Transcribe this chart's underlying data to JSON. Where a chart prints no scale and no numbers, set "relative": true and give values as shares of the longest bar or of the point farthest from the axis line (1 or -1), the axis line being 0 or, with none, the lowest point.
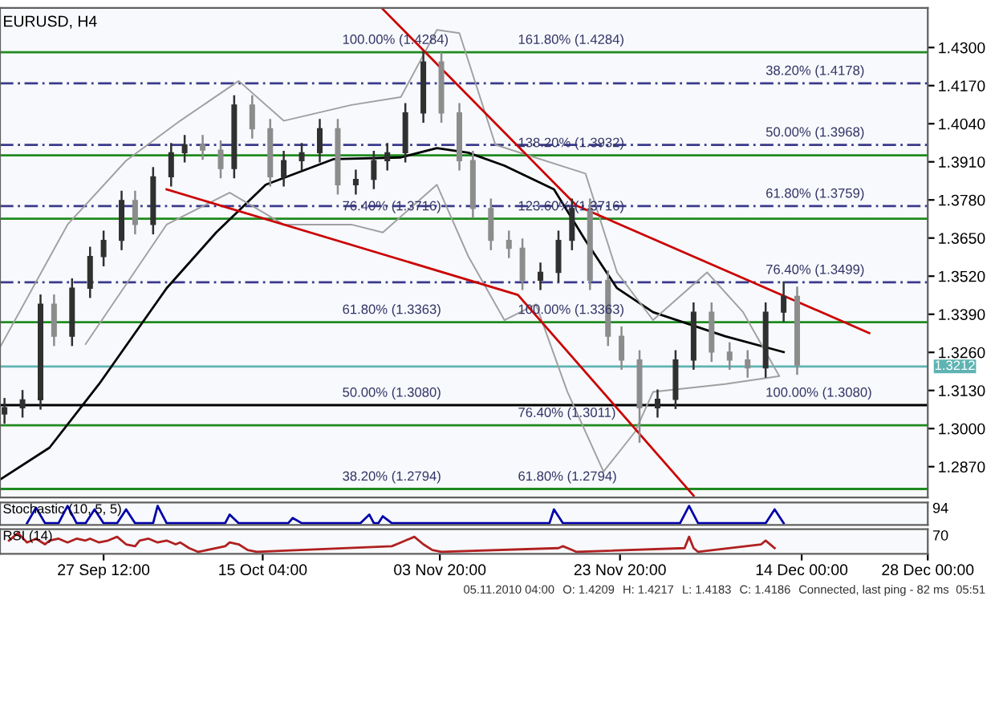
{
  "chart_data": [
    {
      "type": "candlestick",
      "title": "EURUSD, H4",
      "colors": [
        "#303030",
        "#303030",
        "#303030",
        "#8c8c8c",
        "#303030",
        "#303030",
        "#303030",
        "#303030",
        "#8c8c8c",
        "#303030",
        "#303030",
        "#303030",
        "#8c8c8c",
        "#8c8c8c",
        "#303030",
        "#8c8c8c",
        "#8c8c8c",
        "#303030",
        "#303030",
        "#303030",
        "#8c8c8c",
        "#303030",
        "#303030",
        "#303030",
        "#303030",
        "#303030",
        "#8c8c8c",
        "#8c8c8c",
        "#8c8c8c",
        "#8c8c8c",
        "#8c8c8c",
        "#8c8c8c",
        "#303030",
        "#303030",
        "#303030",
        "#8c8c8c",
        "#8c8c8c",
        "#8c8c8c",
        "#8c8c8c",
        "#303030",
        "#303030",
        "#303030",
        "#8c8c8c",
        "#8c8c8c",
        "#8c8c8c",
        "#303030",
        "#303030",
        "#8c8c8c"
      ],
      "x": [
        "2010-09-16T12:00",
        "2010-09-18T12:00",
        "2010-09-20T12:00",
        "2010-09-22T00:00",
        "2010-09-24T00:00",
        "2010-09-26T00:00",
        "2010-09-27T12:00",
        "2010-09-29T12:00",
        "2010-10-01T00:00",
        "2010-10-03T00:00",
        "2010-10-05T00:00",
        "2010-10-06T12:00",
        "2010-10-08T12:00",
        "2010-10-10T12:00",
        "2010-10-12T00:00",
        "2010-10-14T00:00",
        "2010-10-16T00:00",
        "2010-10-17T12:00",
        "2010-10-19T12:00",
        "2010-10-21T12:00",
        "2010-10-23T12:00",
        "2010-10-25T12:00",
        "2010-10-27T12:00",
        "2010-10-29T00:00",
        "2010-10-31T00:00",
        "2010-11-02T00:00",
        "2010-11-04T00:00",
        "2010-11-06T00:00",
        "2010-11-07T12:00",
        "2010-11-09T12:00",
        "2010-11-11T12:00",
        "2010-11-13T00:00",
        "2010-11-15T00:00",
        "2010-11-17T00:00",
        "2010-11-18T12:00",
        "2010-11-20T12:00",
        "2010-11-22T12:00",
        "2010-11-24T00:00",
        "2010-11-26T00:00",
        "2010-11-28T00:00",
        "2010-11-30T00:00",
        "2010-12-02T00:00",
        "2010-12-04T00:00",
        "2010-12-06T00:00",
        "2010-12-08T00:00",
        "2010-12-10T00:00",
        "2010-12-12T00:00",
        "2010-12-13T12:00"
      ],
      "ohlc": [
        [
          1.305,
          1.3101,
          1.302,
          1.3071
        ],
        [
          1.3071,
          1.3128,
          1.3041,
          1.3098
        ],
        [
          1.3098,
          1.3454,
          1.3068,
          1.3424
        ],
        [
          1.3424,
          1.3454,
          1.3285,
          1.3315
        ],
        [
          1.3315,
          1.3509,
          1.3285,
          1.3479
        ],
        [
          1.3479,
          1.3617,
          1.3449,
          1.3587
        ],
        [
          1.3587,
          1.3672,
          1.3557,
          1.3642
        ],
        [
          1.3642,
          1.3808,
          1.3612,
          1.3778
        ],
        [
          1.3778,
          1.3808,
          1.3666,
          1.3696
        ],
        [
          1.3696,
          1.3889,
          1.3666,
          1.3859
        ],
        [
          1.3859,
          1.3971,
          1.3829,
          1.3941
        ],
        [
          1.3941,
          1.3998,
          1.3911,
          1.3968
        ],
        [
          1.3968,
          1.3998,
          1.392,
          1.395
        ],
        [
          1.395,
          1.398,
          1.3857,
          1.3887
        ],
        [
          1.3887,
          1.4134,
          1.3857,
          1.4104
        ],
        [
          1.4104,
          1.4134,
          1.3993,
          1.4023
        ],
        [
          1.4023,
          1.4053,
          1.3829,
          1.3859
        ],
        [
          1.3859,
          1.3944,
          1.3829,
          1.3914
        ],
        [
          1.3914,
          1.3971,
          1.3884,
          1.3941
        ],
        [
          1.3941,
          1.4053,
          1.3911,
          1.4023
        ],
        [
          1.4023,
          1.4053,
          1.3802,
          1.3832
        ],
        [
          1.3832,
          1.388,
          1.3802,
          1.385
        ],
        [
          1.385,
          1.3944,
          1.382,
          1.3914
        ],
        [
          1.3914,
          1.3971,
          1.3884,
          1.3941
        ],
        [
          1.3941,
          1.4107,
          1.3911,
          1.4077
        ],
        [
          1.4077,
          1.4284,
          1.4047,
          1.4251
        ],
        [
          1.4251,
          1.4281,
          1.4047,
          1.4077
        ],
        [
          1.4077,
          1.4107,
          1.3884,
          1.3914
        ],
        [
          1.3914,
          1.3944,
          1.3721,
          1.3751
        ],
        [
          1.3751,
          1.3781,
          1.3612,
          1.3642
        ],
        [
          1.3642,
          1.3672,
          1.3585,
          1.3615
        ],
        [
          1.3615,
          1.3645,
          1.3476,
          1.3506
        ],
        [
          1.3506,
          1.3563,
          1.3476,
          1.3533
        ],
        [
          1.3533,
          1.3672,
          1.3503,
          1.3642
        ],
        [
          1.3642,
          1.3781,
          1.3612,
          1.3751
        ],
        [
          1.3751,
          1.3781,
          1.3476,
          1.3506
        ],
        [
          1.3506,
          1.3536,
          1.3285,
          1.3315
        ],
        [
          1.3315,
          1.3345,
          1.3204,
          1.3234
        ],
        [
          1.3234,
          1.3264,
          1.2955,
          1.3071
        ],
        [
          1.3071,
          1.313,
          1.3041,
          1.31
        ],
        [
          1.31,
          1.3264,
          1.307,
          1.3234
        ],
        [
          1.3234,
          1.3427,
          1.3204,
          1.3397
        ],
        [
          1.3397,
          1.3427,
          1.3231,
          1.3261
        ],
        [
          1.3261,
          1.3291,
          1.3204,
          1.3234
        ],
        [
          1.3234,
          1.3264,
          1.3177,
          1.3207
        ],
        [
          1.3207,
          1.3427,
          1.3177,
          1.3397
        ],
        [
          1.3397,
          1.3499,
          1.3367,
          1.3451
        ],
        [
          1.3451,
          1.3481,
          1.3187,
          1.3217
        ]
      ],
      "series": [
        {
          "type": "line",
          "color": "#000000",
          "x": [
            "2010-09-16T00:00",
            "2010-09-21T12:00",
            "2010-09-27T00:00",
            "2010-10-04T12:00",
            "2010-10-10T00:00",
            "2010-10-15T12:00",
            "2010-10-23T00:00",
            "2010-10-30T12:00",
            "2010-11-03T12:00",
            "2010-11-07T00:00",
            "2010-11-11T00:00",
            "2010-11-16T12:00",
            "2010-11-20T00:00",
            "2010-11-23T12:00",
            "2010-11-27T12:00",
            "2010-12-05T12:00",
            "2010-12-12T00:00"
          ],
          "values": [
            1.2826,
            1.2935,
            1.3152,
            1.3479,
            1.3669,
            1.3832,
            1.3919,
            1.3925,
            1.3957,
            1.3941,
            1.3897,
            1.3816,
            1.3642,
            1.3479,
            1.3397,
            1.3315,
            1.3261
          ]
        },
        {
          "type": "line",
          "color": "#a0a0a0",
          "x": [
            "2010-09-16T00:00",
            "2010-09-23T12:00",
            "2010-09-30T00:00",
            "2010-10-06T00:00",
            "2010-10-12T12:00",
            "2010-10-17T12:00",
            "2010-10-25T00:00",
            "2010-10-30T12:00",
            "2010-11-03T12:00",
            "2010-11-06T00:00",
            "2010-11-10T00:00",
            "2010-11-20T00:00",
            "2010-11-23T12:00",
            "2010-11-27T12:00",
            "2010-12-03T12:00",
            "2010-12-07T12:00",
            "2010-12-11T12:00"
          ],
          "values": [
            1.3277,
            1.3696,
            1.3914,
            1.405,
            1.4186,
            1.405,
            1.4104,
            1.4131,
            1.436,
            1.4349,
            1.3968,
            1.387,
            1.3533,
            1.337,
            1.3533,
            1.3397,
            1.318
          ]
        },
        {
          "type": "line",
          "color": "#a0a0a0",
          "x": [
            "2010-09-25T12:00",
            "2010-10-04T12:00",
            "2010-10-11T12:00",
            "2010-10-17T12:00",
            "2010-10-25T00:00",
            "2010-10-28T12:00",
            "2010-11-03T12:00",
            "2010-11-07T00:00",
            "2010-11-11T00:00",
            "2010-11-14T12:00",
            "2010-11-18T00:00",
            "2010-11-22T00:00",
            "2010-11-25T12:00",
            "2010-11-27T12:00",
            "2010-12-05T12:00",
            "2010-12-11T12:00"
          ],
          "values": [
            1.3288,
            1.3696,
            1.3805,
            1.3696,
            1.3696,
            1.3669,
            1.3832,
            1.3587,
            1.337,
            1.3424,
            1.3125,
            1.2853,
            1.2989,
            1.3125,
            1.3152,
            1.3179
          ]
        },
        {
          "type": "line",
          "color": "#cc0000",
          "x": [
            "2010-10-04T12:00",
            "2010-11-12T12:00",
            "2010-12-02T00:00"
          ],
          "values": [
            1.3816,
            1.3456,
            1.2771
          ]
        },
        {
          "type": "line",
          "color": "#cc0000",
          "x": [
            "2010-10-28T12:00",
            "2010-11-19T00:00",
            "2010-12-21T12:00"
          ],
          "values": [
            1.4431,
            1.3761,
            1.3326
          ]
        }
      ],
      "ref_lines": [
        {
          "axis": "y",
          "value": 1.4284,
          "color": "#1f8a1f"
        },
        {
          "axis": "y",
          "value": 1.4178,
          "color": "#3a3a8c",
          "line_style": "dashed"
        },
        {
          "axis": "y",
          "value": 1.3968,
          "color": "#3a3a8c",
          "line_style": "dashed"
        },
        {
          "axis": "y",
          "value": 1.3932,
          "color": "#1f8a1f"
        },
        {
          "axis": "y",
          "value": 1.3759,
          "color": "#3a3a8c",
          "line_style": "dashed"
        },
        {
          "axis": "y",
          "value": 1.3716,
          "color": "#1f8a1f"
        },
        {
          "axis": "y",
          "value": 1.3499,
          "color": "#3a3a8c",
          "line_style": "dashed"
        },
        {
          "axis": "y",
          "value": 1.3363,
          "color": "#1f8a1f"
        },
        {
          "axis": "y",
          "value": 1.3212,
          "color": "#5fb3b3",
          "label": "1.3212"
        },
        {
          "axis": "y",
          "value": 1.308,
          "color": "#000000"
        },
        {
          "axis": "y",
          "value": 1.3011,
          "color": "#1f8a1f"
        },
        {
          "axis": "y",
          "value": 1.2794,
          "color": "#1f8a1f"
        }
      ],
      "annotations": [
        {
          "text": "100.00% (1.4284)",
          "x": "2010-10-24T00:00",
          "y": 1.4284
        },
        {
          "text": "76.40% (1.3716)",
          "x": "2010-10-24T00:00",
          "y": 1.3716
        },
        {
          "text": "61.80% (1.3363)",
          "x": "2010-10-24T00:00",
          "y": 1.3363
        },
        {
          "text": "50.00% (1.3080)",
          "x": "2010-10-24T00:00",
          "y": 1.308
        },
        {
          "text": "38.20% (1.2794)",
          "x": "2010-10-24T00:00",
          "y": 1.2794
        },
        {
          "text": "161.80% (1.4284)",
          "x": "2010-11-12T12:00",
          "y": 1.4284
        },
        {
          "text": "138.20% (1.3932)",
          "x": "2010-11-12T12:00",
          "y": 1.3932
        },
        {
          "text": "123.60% (1.3716)",
          "x": "2010-11-12T12:00",
          "y": 1.3716
        },
        {
          "text": "100.00% (1.3363)",
          "x": "2010-11-12T12:00",
          "y": 1.3363
        },
        {
          "text": "76.40% (1.3011)",
          "x": "2010-11-12T12:00",
          "y": 1.3011
        },
        {
          "text": "61.80% (1.2794)",
          "x": "2010-11-12T12:00",
          "y": 1.2794
        },
        {
          "text": "38.20% (1.4178)",
          "x": "2010-12-10T00:00",
          "y": 1.4178
        },
        {
          "text": "50.00% (1.3968)",
          "x": "2010-12-10T00:00",
          "y": 1.3968
        },
        {
          "text": "61.80% (1.3759)",
          "x": "2010-12-10T00:00",
          "y": 1.3759
        },
        {
          "text": "76.40% (1.3499)",
          "x": "2010-12-10T00:00",
          "y": 1.3499
        },
        {
          "text": "100.00% (1.3080)",
          "x": "2010-12-10T00:00",
          "y": 1.308
        },
        "05.11.2010 04:00",
        "O: 1.4209",
        "H: 1.4217",
        "L: 1.4183",
        "C: 1.4186",
        "Connected, last ping - 82 ms",
        "05:51"
      ],
      "xlim": [
        "2010-09-16T00:00",
        "2010-12-28T00:00"
      ],
      "ylim": [
        1.2765,
        1.4435
      ],
      "yticks": [
        {
          "value": 1.43,
          "label": "1.4300"
        },
        {
          "value": 1.417,
          "label": "1.4170"
        },
        {
          "value": 1.404,
          "label": "1.4040"
        },
        {
          "value": 1.391,
          "label": "1.3910"
        },
        {
          "value": 1.378,
          "label": "1.3780"
        },
        {
          "value": 1.365,
          "label": "1.3650"
        },
        {
          "value": 1.352,
          "label": "1.3520"
        },
        {
          "value": 1.339,
          "label": "1.3390"
        },
        {
          "value": 1.326,
          "label": "1.3260"
        },
        {
          "value": 1.313,
          "label": "1.3130"
        },
        {
          "value": 1.3,
          "label": "1.3000"
        },
        {
          "value": 1.287,
          "label": "1.2870"
        }
      ],
      "tick_labels": "y",
      "grid": false,
      "legend": false
    },
    {
      "type": "line",
      "title": "Stochastic (10, 5, 5)",
      "relative": true,
      "xlim": [
        "2010-09-16T00:00",
        "2010-12-28T00:00"
      ],
      "tick_labels": false,
      "annotations": [
        "94"
      ],
      "series": [
        {
          "color": "#0000aa",
          "x": [
            "2010-09-19T00:00",
            "2010-09-20T00:00",
            "2010-09-21T00:00",
            "2010-09-22T12:00",
            "2010-09-23T12:00",
            "2010-09-24T12:00",
            "2010-09-25T12:00",
            "2010-09-26T12:00",
            "2010-09-27T12:00",
            "2010-09-29T00:00",
            "2010-09-30T00:00",
            "2010-10-01T00:00",
            "2010-10-03T00:00",
            "2010-10-03T12:00",
            "2010-10-04T12:00",
            "2010-10-11T00:00",
            "2010-10-11T12:00",
            "2010-10-12T12:00",
            "2010-10-18T00:00",
            "2010-10-18T12:00",
            "2010-10-19T12:00",
            "2010-10-26T00:00",
            "2010-10-27T00:00",
            "2010-10-27T12:00",
            "2010-10-28T00:00",
            "2010-10-28T12:00",
            "2010-10-29T12:00",
            "2010-11-16T00:00",
            "2010-11-16T12:00",
            "2010-11-17T12:00",
            "2010-11-30T12:00",
            "2010-12-01T12:00",
            "2010-12-02T12:00",
            "2010-12-10T00:00",
            "2010-12-11T00:00",
            "2010-12-12T00:00"
          ],
          "values": [
            0,
            0.9,
            0,
            0,
            1,
            0,
            0,
            0.8,
            0,
            0,
            0.8,
            0,
            0,
            1,
            0,
            0,
            0.5,
            0,
            0,
            0.3,
            0,
            0,
            0.5,
            0,
            0,
            0.4,
            0,
            0,
            0.8,
            0,
            0,
            1,
            0,
            0,
            0.8,
            0
          ]
        }
      ]
    },
    {
      "type": "line",
      "title": "RSI (14)",
      "relative": true,
      "xlim": [
        "2010-09-16T00:00",
        "2010-12-28T00:00"
      ],
      "tick_labels": "x",
      "annotations": [
        "70"
      ],
      "xticks": [
        {
          "value": "2010-09-27T12:00",
          "label": "27 Sep 12:00"
        },
        {
          "value": "2010-10-15T04:00",
          "label": "15 Oct 04:00"
        },
        {
          "value": "2010-11-03T20:00",
          "label": "03 Nov 20:00"
        },
        {
          "value": "2010-11-23T20:00",
          "label": "23 Nov 20:00"
        },
        {
          "value": "2010-12-14T00:00",
          "label": "14 Dec 00:00"
        },
        {
          "value": "2010-12-28T00:00",
          "label": "28 Dec 00:00"
        }
      ],
      "series": [
        {
          "color": "#b02020",
          "x": [
            "2010-09-17T00:00",
            "2010-09-18T00:00",
            "2010-09-19T00:00",
            "2010-09-20T00:00",
            "2010-09-21T00:00",
            "2010-09-21T12:00",
            "2010-09-22T12:00",
            "2010-09-23T12:00",
            "2010-09-24T12:00",
            "2010-09-25T12:00",
            "2010-09-26T00:00",
            "2010-09-27T00:00",
            "2010-09-28T00:00",
            "2010-09-29T00:00",
            "2010-09-30T00:00",
            "2010-10-01T00:00",
            "2010-10-01T12:00",
            "2010-10-02T12:00",
            "2010-10-03T12:00",
            "2010-10-04T12:00",
            "2010-10-05T12:00",
            "2010-10-06T00:00",
            "2010-10-07T00:00",
            "2010-10-08T00:00",
            "2010-10-11T00:00",
            "2010-10-11T12:00",
            "2010-10-12T12:00",
            "2010-10-13T12:00",
            "2010-10-14T12:00",
            "2010-10-29T12:00",
            "2010-10-30T12:00",
            "2010-11-01T00:00",
            "2010-11-02T00:00",
            "2010-11-03T00:00",
            "2010-11-04T00:00",
            "2010-11-17T00:00",
            "2010-11-17T12:00",
            "2010-11-18T12:00",
            "2010-11-19T00:00",
            "2010-12-01T00:00",
            "2010-12-01T12:00",
            "2010-12-02T00:00",
            "2010-12-02T12:00",
            "2010-12-09T12:00",
            "2010-12-10T00:00",
            "2010-12-11T00:00"
          ],
          "values": [
            0.6,
            1.0,
            0.5,
            0.7,
            0.4,
            0.6,
            0.7,
            0.5,
            0.7,
            0.6,
            0.7,
            0.5,
            0.6,
            0.8,
            0.4,
            0.3,
            0.6,
            0.7,
            0.5,
            0.6,
            0.4,
            0.5,
            0.2,
            0,
            0.3,
            0.5,
            0.4,
            0.1,
            0,
            0.3,
            0.5,
            0.8,
            0.4,
            0.1,
            0,
            0.2,
            0.3,
            0.1,
            0,
            0.2,
            0.8,
            0.2,
            0,
            0.4,
            0.6,
            0.2
          ]
        }
      ]
    }
  ]
}
